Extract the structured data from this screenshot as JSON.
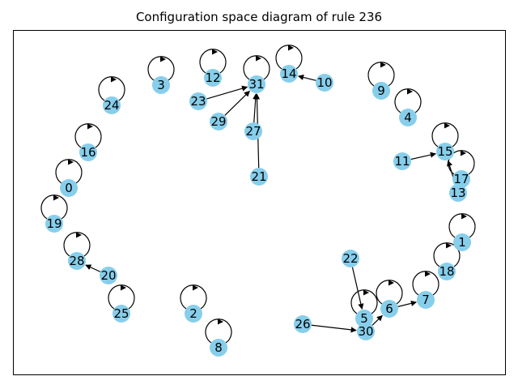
{
  "title": "Configuration space diagram of rule 236",
  "colors": {
    "node": "#87ceeb",
    "edge": "#000000",
    "label": "#000000"
  },
  "nodes": [
    "0",
    "1",
    "2",
    "3",
    "4",
    "5",
    "6",
    "7",
    "8",
    "9",
    "10",
    "11",
    "12",
    "13",
    "14",
    "15",
    "16",
    "17",
    "18",
    "19",
    "20",
    "21",
    "22",
    "23",
    "24",
    "25",
    "26",
    "27",
    "28",
    "29",
    "30",
    "31"
  ],
  "self_loops": [
    "0",
    "1",
    "2",
    "3",
    "4",
    "5",
    "6",
    "7",
    "8",
    "9",
    "12",
    "14",
    "15",
    "16",
    "17",
    "18",
    "19",
    "24",
    "25",
    "28",
    "31"
  ],
  "edges": [
    {
      "from": "23",
      "to": "31"
    },
    {
      "from": "29",
      "to": "31"
    },
    {
      "from": "27",
      "to": "31"
    },
    {
      "from": "21",
      "to": "31"
    },
    {
      "from": "10",
      "to": "14"
    },
    {
      "from": "11",
      "to": "15"
    },
    {
      "from": "13",
      "to": "15"
    },
    {
      "from": "20",
      "to": "28"
    },
    {
      "from": "22",
      "to": "5"
    },
    {
      "from": "26",
      "to": "30"
    },
    {
      "from": "30",
      "to": "6"
    },
    {
      "from": "6",
      "to": "7"
    }
  ]
}
